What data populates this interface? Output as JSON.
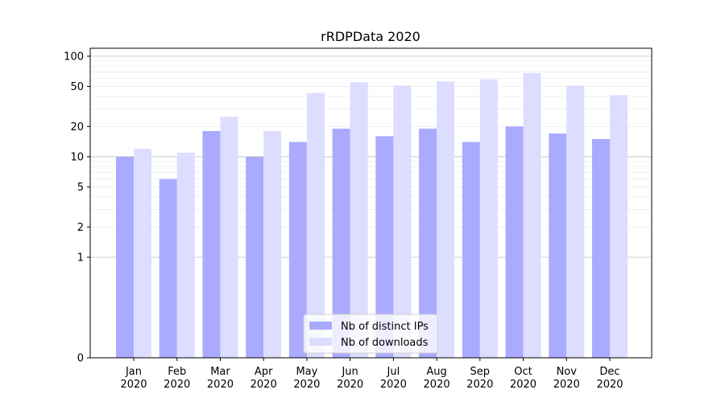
{
  "chart_data": {
    "type": "bar",
    "title": "rRDPData 2020",
    "xlabel": "",
    "ylabel": "",
    "yscale": "symlog",
    "ylim": [
      0,
      120
    ],
    "yticks": [
      0,
      1,
      2,
      5,
      10,
      20,
      50,
      100
    ],
    "ytick_labels": [
      "0",
      "1",
      "2",
      "5",
      "10",
      "20",
      "50",
      "100"
    ],
    "categories": [
      "Jan\n2020",
      "Feb\n2020",
      "Mar\n2020",
      "Apr\n2020",
      "May\n2020",
      "Jun\n2020",
      "Jul\n2020",
      "Aug\n2020",
      "Sep\n2020",
      "Oct\n2020",
      "Nov\n2020",
      "Dec\n2020"
    ],
    "category_lines": [
      [
        "Jan",
        "2020"
      ],
      [
        "Feb",
        "2020"
      ],
      [
        "Mar",
        "2020"
      ],
      [
        "Apr",
        "2020"
      ],
      [
        "May",
        "2020"
      ],
      [
        "Jun",
        "2020"
      ],
      [
        "Jul",
        "2020"
      ],
      [
        "Aug",
        "2020"
      ],
      [
        "Sep",
        "2020"
      ],
      [
        "Oct",
        "2020"
      ],
      [
        "Nov",
        "2020"
      ],
      [
        "Dec",
        "2020"
      ]
    ],
    "series": [
      {
        "name": "Nb of distinct IPs",
        "color": "#aaaaff",
        "values": [
          10,
          6,
          18,
          10,
          14,
          19,
          16,
          19,
          14,
          20,
          17,
          15
        ]
      },
      {
        "name": "Nb of downloads",
        "color": "#ddddff",
        "values": [
          12,
          11,
          25,
          18,
          43,
          55,
          51,
          56,
          59,
          68,
          51,
          41
        ]
      }
    ],
    "grid": true,
    "legend_position": "bottom-center"
  }
}
